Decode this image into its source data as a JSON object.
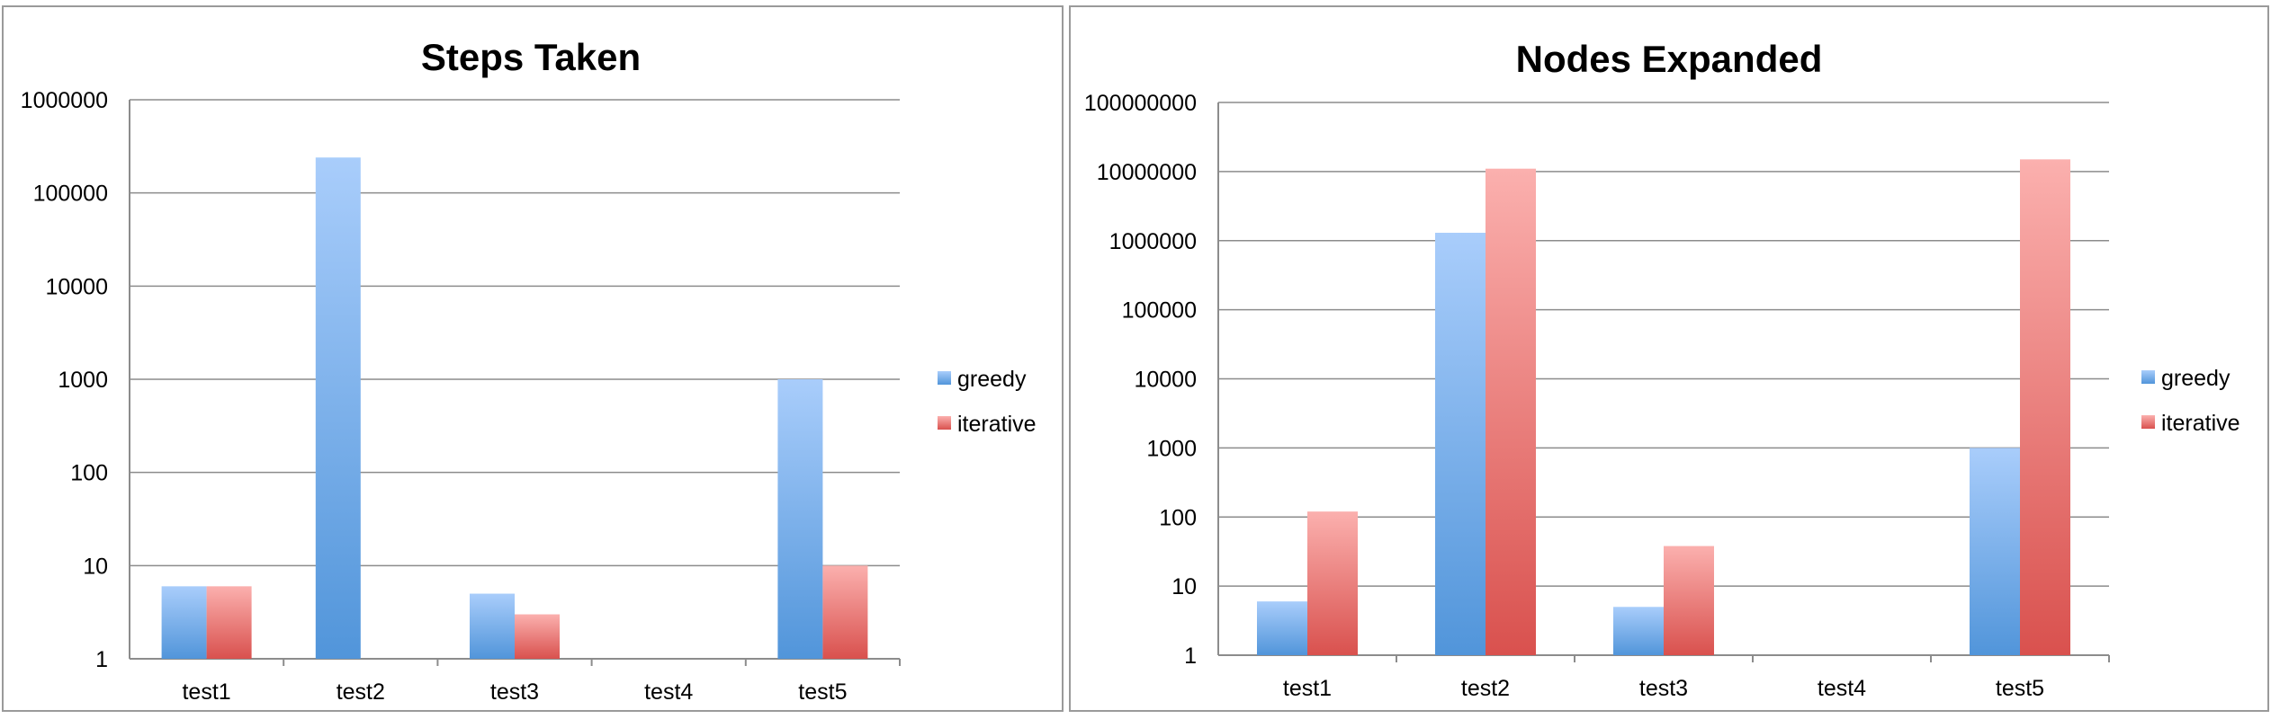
{
  "chart_data": [
    {
      "type": "bar",
      "title": "Steps Taken",
      "scale": "log",
      "ylim": [
        1,
        1000000
      ],
      "yticks": [
        "1",
        "10",
        "100",
        "1000",
        "10000",
        "100000",
        "1000000"
      ],
      "categories": [
        "test1",
        "test2",
        "test3",
        "test4",
        "test5"
      ],
      "series": [
        {
          "name": "greedy",
          "values": [
            6,
            240000,
            5,
            null,
            1000
          ]
        },
        {
          "name": "iterative",
          "values": [
            6,
            null,
            3,
            null,
            10
          ]
        }
      ],
      "legend": "right",
      "grid": true
    },
    {
      "type": "bar",
      "title": "Nodes Expanded",
      "scale": "log",
      "ylim": [
        1,
        100000000
      ],
      "yticks": [
        "1",
        "10",
        "100",
        "1000",
        "10000",
        "100000",
        "1000000",
        "10000000",
        "100000000"
      ],
      "categories": [
        "test1",
        "test2",
        "test3",
        "test4",
        "test5"
      ],
      "series": [
        {
          "name": "greedy",
          "values": [
            6,
            1300000,
            5,
            null,
            1000
          ]
        },
        {
          "name": "iterative",
          "values": [
            120,
            11000000,
            38,
            null,
            15000000
          ]
        }
      ],
      "legend": "right",
      "grid": true
    }
  ],
  "colors": {
    "greedy_top": "#a9cdfb",
    "greedy_bottom": "#5195da",
    "iterative_top": "#fbb0ae",
    "iterative_bottom": "#d9514e"
  }
}
